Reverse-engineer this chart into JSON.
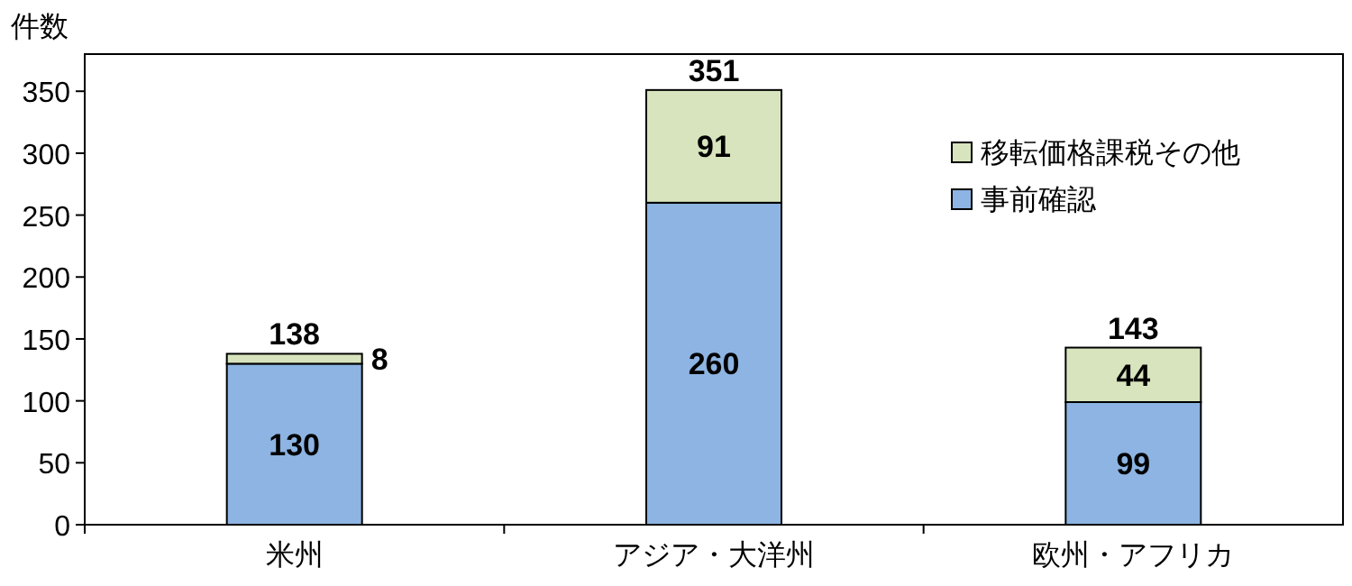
{
  "chart_data": {
    "type": "bar",
    "stacked": true,
    "ylabel": "件数",
    "categories": [
      "米州",
      "アジア・大洋州",
      "欧州・アフリカ"
    ],
    "series": [
      {
        "name": "事前確認",
        "color": "#8db4e2",
        "values": [
          130,
          260,
          99
        ]
      },
      {
        "name": "移転価格課税その他",
        "color": "#d7e4bd",
        "values": [
          8,
          91,
          44
        ]
      }
    ],
    "totals": [
      "138",
      "351",
      "143"
    ],
    "data_labels": true,
    "ylim": [
      0,
      380
    ],
    "yticks": [
      0,
      50,
      100,
      150,
      200,
      250,
      300,
      350
    ],
    "grid": false,
    "legend": "top right"
  }
}
